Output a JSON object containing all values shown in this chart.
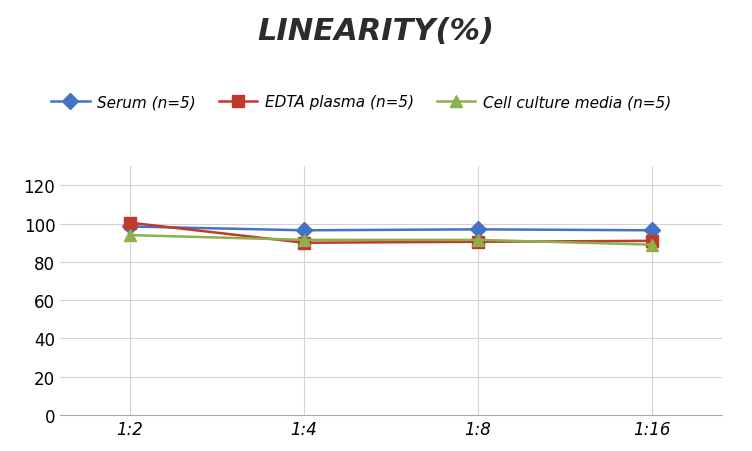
{
  "title": "LINEARITY(%)",
  "x_labels": [
    "1:2",
    "1:4",
    "1:8",
    "1:16"
  ],
  "x_positions": [
    0,
    1,
    2,
    3
  ],
  "series": [
    {
      "label": "Serum (n=5)",
      "values": [
        98.5,
        96.5,
        97.0,
        96.5
      ],
      "color": "#4472C4",
      "marker": "D",
      "marker_color": "#4472C4",
      "linewidth": 1.8
    },
    {
      "label": "EDTA plasma (n=5)",
      "values": [
        100.5,
        90.0,
        90.5,
        91.0
      ],
      "color": "#C0392B",
      "marker": "s",
      "marker_color": "#C0392B",
      "linewidth": 1.8
    },
    {
      "label": "Cell culture media (n=5)",
      "values": [
        94.0,
        91.5,
        91.5,
        89.0
      ],
      "color": "#8DB04A",
      "marker": "^",
      "marker_color": "#8DB04A",
      "linewidth": 1.8
    }
  ],
  "ylim": [
    0,
    130
  ],
  "yticks": [
    0,
    20,
    40,
    60,
    80,
    100,
    120
  ],
  "background_color": "#ffffff",
  "grid_color": "#d3d3d3",
  "title_fontsize": 22,
  "title_fontstyle": "italic",
  "title_fontweight": "bold",
  "legend_fontsize": 11,
  "tick_fontsize": 12
}
